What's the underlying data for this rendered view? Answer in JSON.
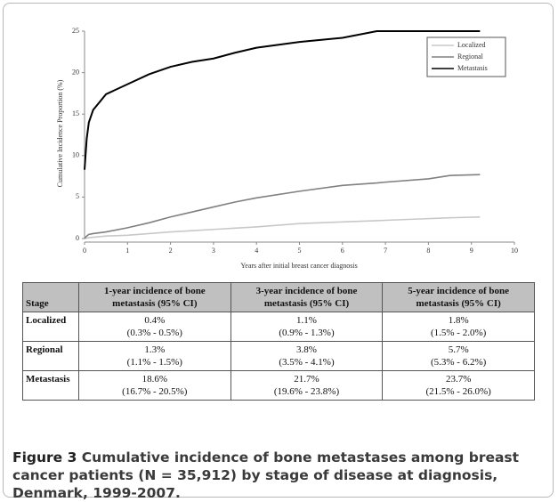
{
  "chart_data": {
    "type": "line",
    "y_label": "Cumulative Incidence Proportion (%)",
    "x_label": "Years after initial breast cancer diagnosis",
    "x": [
      0,
      0.05,
      0.1,
      0.2,
      0.5,
      1,
      1.5,
      2,
      2.5,
      3,
      3.5,
      4,
      5,
      6,
      6.8,
      7,
      8,
      8.5,
      9.2
    ],
    "series": [
      {
        "name": "Localized",
        "color": "#c8c8c8",
        "values": [
          0,
          0.05,
          0.1,
          0.15,
          0.3,
          0.4,
          0.6,
          0.8,
          0.95,
          1.1,
          1.25,
          1.4,
          1.8,
          2.0,
          2.15,
          2.2,
          2.4,
          2.5,
          2.6
        ]
      },
      {
        "name": "Regional",
        "color": "#808080",
        "values": [
          0,
          0.3,
          0.5,
          0.6,
          0.8,
          1.3,
          1.9,
          2.6,
          3.2,
          3.8,
          4.4,
          4.9,
          5.7,
          6.4,
          6.7,
          6.8,
          7.2,
          7.6,
          7.7
        ]
      },
      {
        "name": "Metastasis",
        "color": "#000000",
        "values": [
          8.3,
          12,
          14,
          15.5,
          17.4,
          18.6,
          19.8,
          20.7,
          21.3,
          21.7,
          22.4,
          23,
          23.7,
          24.2,
          25,
          25,
          25,
          25,
          25
        ]
      }
    ],
    "xlim": [
      0,
      10
    ],
    "xticks": [
      0,
      1,
      2,
      3,
      4,
      5,
      6,
      7,
      8,
      9,
      10
    ],
    "ylim": [
      0,
      25
    ],
    "yticks": [
      0,
      5,
      10,
      15,
      20,
      25
    ],
    "legend": "top-right"
  },
  "table": {
    "header": [
      "Stage",
      "1-year incidence of bone metastasis (95% CI)",
      "3-year incidence of bone metastasis (95% CI)",
      "5-year incidence of bone metastasis (95% CI)"
    ],
    "rows": [
      {
        "stage": "Localized",
        "cells": [
          {
            "value": "0.4%",
            "ci": "(0.3% - 0.5%)"
          },
          {
            "value": "1.1%",
            "ci": "(0.9% - 1.3%)"
          },
          {
            "value": "1.8%",
            "ci": "(1.5% - 2.0%)"
          }
        ]
      },
      {
        "stage": "Regional",
        "cells": [
          {
            "value": "1.3%",
            "ci": "(1.1% - 1.5%)"
          },
          {
            "value": "3.8%",
            "ci": "(3.5% - 4.1%)"
          },
          {
            "value": "5.7%",
            "ci": "(5.3% - 6.2%)"
          }
        ]
      },
      {
        "stage": "Metastasis",
        "cells": [
          {
            "value": "18.6%",
            "ci": "(16.7% - 20.5%)"
          },
          {
            "value": "21.7%",
            "ci": "(19.6% - 23.8%)"
          },
          {
            "value": "23.7%",
            "ci": "(21.5% - 26.0%)"
          }
        ]
      }
    ]
  },
  "caption": {
    "label": "Figure 3",
    "text": "Cumulative incidence of bone metastases among breast cancer patients (N = 35,912) by stage of disease at diagnosis, Denmark, 1999-2007."
  }
}
